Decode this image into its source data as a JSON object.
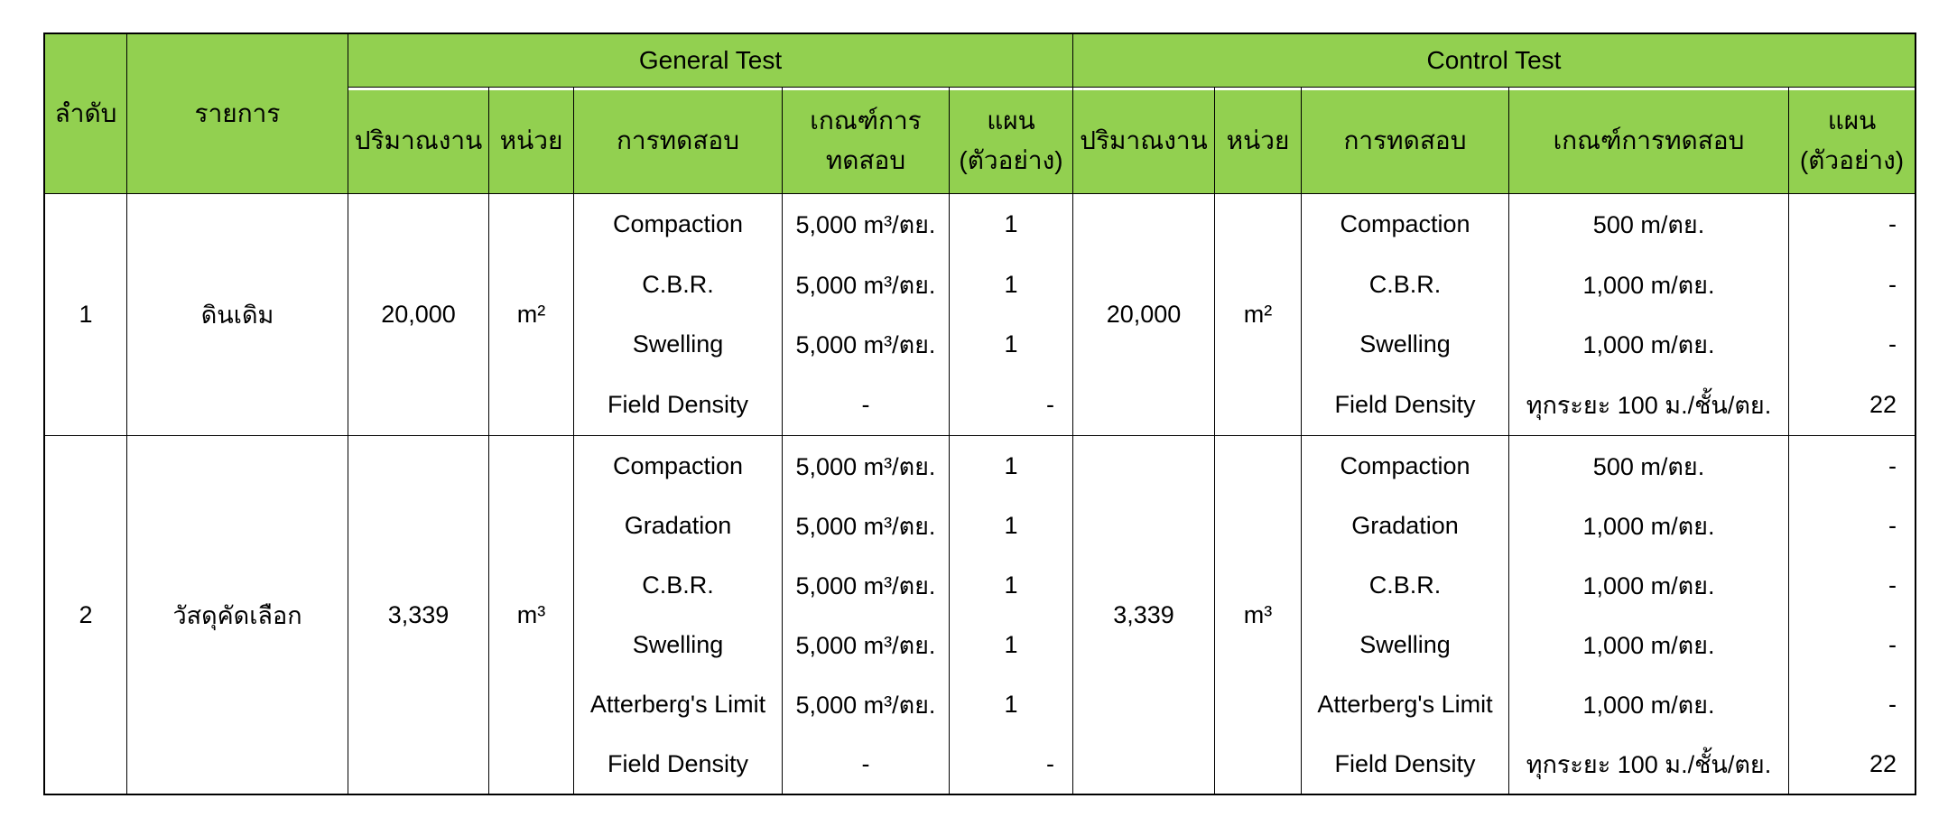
{
  "table": {
    "corner": {
      "no": "ลำดับ",
      "item": "รายการ"
    },
    "groups": {
      "general": "General Test",
      "control": "Control Test"
    },
    "subheaders": {
      "quantity": "ปริมาณงาน",
      "unit": "หน่วย",
      "test": "การทดสอบ",
      "criteria_l1": "เกณฑ์การ",
      "criteria_l2": "ทดสอบ",
      "criteria_one_line": "เกณฑ์การทดสอบ",
      "plan_l1": "แผน",
      "plan_l2": "(ตัวอย่าง)"
    },
    "colors": {
      "header_green": "#92d050",
      "border": "#000000"
    },
    "rows": [
      {
        "no": "1",
        "item": "ดินเดิม",
        "general": {
          "quantity": "20,000",
          "unit": "m²",
          "tests": [
            {
              "name": "Compaction",
              "criteria": "5,000 m³/ตย.",
              "plan": "1"
            },
            {
              "name": "C.B.R.",
              "criteria": "5,000 m³/ตย.",
              "plan": "1"
            },
            {
              "name": "Swelling",
              "criteria": "5,000 m³/ตย.",
              "plan": "1"
            },
            {
              "name": "Field Density",
              "criteria": "-",
              "plan": "-"
            }
          ]
        },
        "control": {
          "quantity": "20,000",
          "unit": "m²",
          "tests": [
            {
              "name": "Compaction",
              "criteria": "500 m/ตย.",
              "plan": "-"
            },
            {
              "name": "C.B.R.",
              "criteria": "1,000 m/ตย.",
              "plan": "-"
            },
            {
              "name": "Swelling",
              "criteria": "1,000 m/ตย.",
              "plan": "-"
            },
            {
              "name": "Field Density",
              "criteria": "ทุกระยะ 100 ม./ชั้น/ตย.",
              "plan": "22"
            }
          ]
        }
      },
      {
        "no": "2",
        "item": "วัสดุคัดเลือก",
        "general": {
          "quantity": "3,339",
          "unit": "m³",
          "tests": [
            {
              "name": "Compaction",
              "criteria": "5,000 m³/ตย.",
              "plan": "1"
            },
            {
              "name": "Gradation",
              "criteria": "5,000 m³/ตย.",
              "plan": "1"
            },
            {
              "name": "C.B.R.",
              "criteria": "5,000 m³/ตย.",
              "plan": "1"
            },
            {
              "name": "Swelling",
              "criteria": "5,000 m³/ตย.",
              "plan": "1"
            },
            {
              "name": "Atterberg's Limit",
              "criteria": "5,000 m³/ตย.",
              "plan": "1"
            },
            {
              "name": "Field Density",
              "criteria": "-",
              "plan": "-"
            }
          ]
        },
        "control": {
          "quantity": "3,339",
          "unit": "m³",
          "tests": [
            {
              "name": "Compaction",
              "criteria": "500 m/ตย.",
              "plan": "-"
            },
            {
              "name": "Gradation",
              "criteria": "1,000 m/ตย.",
              "plan": "-"
            },
            {
              "name": "C.B.R.",
              "criteria": "1,000 m/ตย.",
              "plan": "-"
            },
            {
              "name": "Swelling",
              "criteria": "1,000 m/ตย.",
              "plan": "-"
            },
            {
              "name": "Atterberg's Limit",
              "criteria": "1,000 m/ตย.",
              "plan": "-"
            },
            {
              "name": "Field Density",
              "criteria": "ทุกระยะ 100 ม./ชั้น/ตย.",
              "plan": "22"
            }
          ]
        }
      }
    ]
  }
}
